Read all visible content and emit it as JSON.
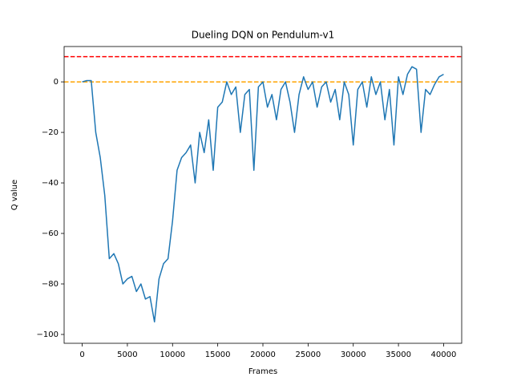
{
  "chart_data": {
    "type": "line",
    "title": "Dueling DQN on Pendulum-v1",
    "xlabel": "Frames",
    "ylabel": "Q value",
    "x": [
      0,
      500,
      1000,
      1500,
      2000,
      2500,
      3000,
      3500,
      4000,
      4500,
      5000,
      5500,
      6000,
      6500,
      7000,
      7500,
      8000,
      8500,
      9000,
      9500,
      10000,
      10500,
      11000,
      11500,
      12000,
      12500,
      13000,
      13500,
      14000,
      14500,
      15000,
      15500,
      16000,
      16500,
      17000,
      17500,
      18000,
      18500,
      19000,
      19500,
      20000,
      20500,
      21000,
      21500,
      22000,
      22500,
      23000,
      23500,
      24000,
      24500,
      25000,
      25500,
      26000,
      26500,
      27000,
      27500,
      28000,
      28500,
      29000,
      29500,
      30000,
      30500,
      31000,
      31500,
      32000,
      32500,
      33000,
      33500,
      34000,
      34500,
      35000,
      35500,
      36000,
      36500,
      37000,
      37500,
      38000,
      38500,
      39000,
      39500,
      40000
    ],
    "series": [
      {
        "color": "#1f77b4",
        "values": [
          0,
          0.5,
          0.5,
          -20,
          -30,
          -45,
          -70,
          -68,
          -72,
          -80,
          -78,
          -77,
          -83,
          -80,
          -86,
          -85,
          -95,
          -78,
          -72,
          -70,
          -55,
          -35,
          -30,
          -28,
          -25,
          -40,
          -20,
          -28,
          -15,
          -35,
          -10,
          -8,
          0,
          -5,
          -2,
          -20,
          -5,
          -3,
          -35,
          -2,
          0,
          -10,
          -5,
          -15,
          -3,
          0,
          -8,
          -20,
          -5,
          2,
          -3,
          0,
          -10,
          -2,
          0,
          -8,
          -3,
          -15,
          0,
          -5,
          -25,
          -3,
          0,
          -10,
          2,
          -5,
          0,
          -15,
          -3,
          -25,
          2,
          -5,
          3,
          6,
          5,
          -20,
          -3,
          -5,
          -1,
          2,
          3
        ]
      }
    ],
    "hlines": [
      {
        "value": 10,
        "color": "#ff0000"
      },
      {
        "value": 0,
        "color": "#ffa500"
      }
    ],
    "xlim": [
      -2000,
      42000
    ],
    "ylim": [
      -103.5,
      14
    ],
    "xticks": [
      0,
      5000,
      10000,
      15000,
      20000,
      25000,
      30000,
      35000,
      40000
    ],
    "yticks": [
      {
        "value": -100,
        "label": "−100"
      },
      {
        "value": -80,
        "label": "−80"
      },
      {
        "value": -60,
        "label": "−60"
      },
      {
        "value": -40,
        "label": "−40"
      },
      {
        "value": -20,
        "label": "−20"
      },
      0
    ]
  }
}
